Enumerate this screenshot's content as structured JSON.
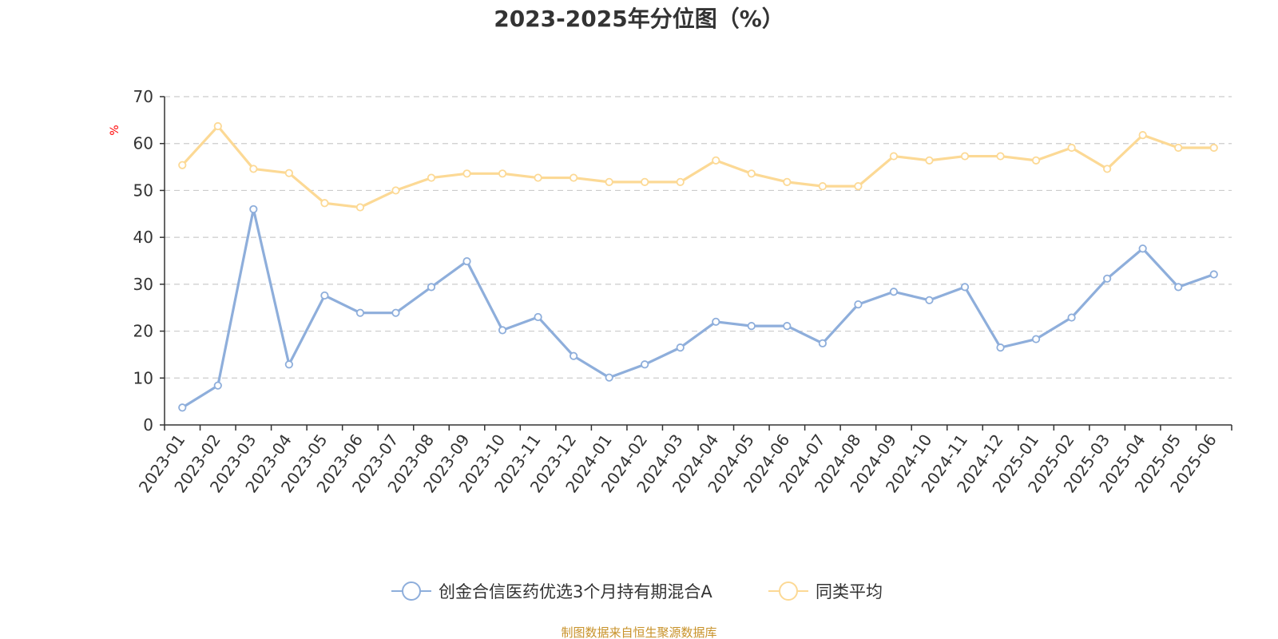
{
  "chart_data": {
    "type": "line",
    "title": "2023-2025年分位图（%）",
    "ylabel": "%",
    "ylim": [
      0,
      70
    ],
    "yticks": [
      0,
      10,
      20,
      30,
      40,
      50,
      60,
      70
    ],
    "grid": true,
    "legend_position": "bottom",
    "categories": [
      "2023-01",
      "2023-02",
      "2023-03",
      "2023-04",
      "2023-05",
      "2023-06",
      "2023-07",
      "2023-08",
      "2023-09",
      "2023-10",
      "2023-11",
      "2023-12",
      "2024-01",
      "2024-02",
      "2024-03",
      "2024-04",
      "2024-05",
      "2024-06",
      "2024-07",
      "2024-08",
      "2024-09",
      "2024-10",
      "2024-11",
      "2024-12",
      "2025-01",
      "2025-02",
      "2025-03",
      "2025-04",
      "2025-05",
      "2025-06"
    ],
    "series": [
      {
        "name": "创金合信医药优选3个月持有期混合A",
        "color": "#8eaedb",
        "values": [
          3.7,
          8.4,
          46.0,
          12.9,
          27.6,
          23.9,
          23.9,
          29.4,
          34.9,
          20.2,
          23.0,
          14.7,
          10.1,
          12.9,
          16.5,
          22.0,
          21.1,
          21.1,
          17.4,
          25.7,
          28.4,
          26.6,
          29.4,
          16.5,
          18.3,
          22.9,
          31.2,
          37.6,
          29.4,
          32.1
        ]
      },
      {
        "name": "同类平均",
        "color": "#fcd995",
        "values": [
          55.4,
          63.7,
          54.6,
          53.7,
          47.3,
          46.4,
          50.0,
          52.7,
          53.6,
          53.6,
          52.7,
          52.7,
          51.8,
          51.8,
          51.8,
          56.4,
          53.6,
          51.8,
          50.9,
          50.9,
          57.3,
          56.4,
          57.3,
          57.3,
          56.4,
          59.1,
          54.6,
          61.8,
          59.1,
          59.1
        ]
      }
    ]
  },
  "footer": {
    "source": "制图数据来自恒生聚源数据库"
  }
}
